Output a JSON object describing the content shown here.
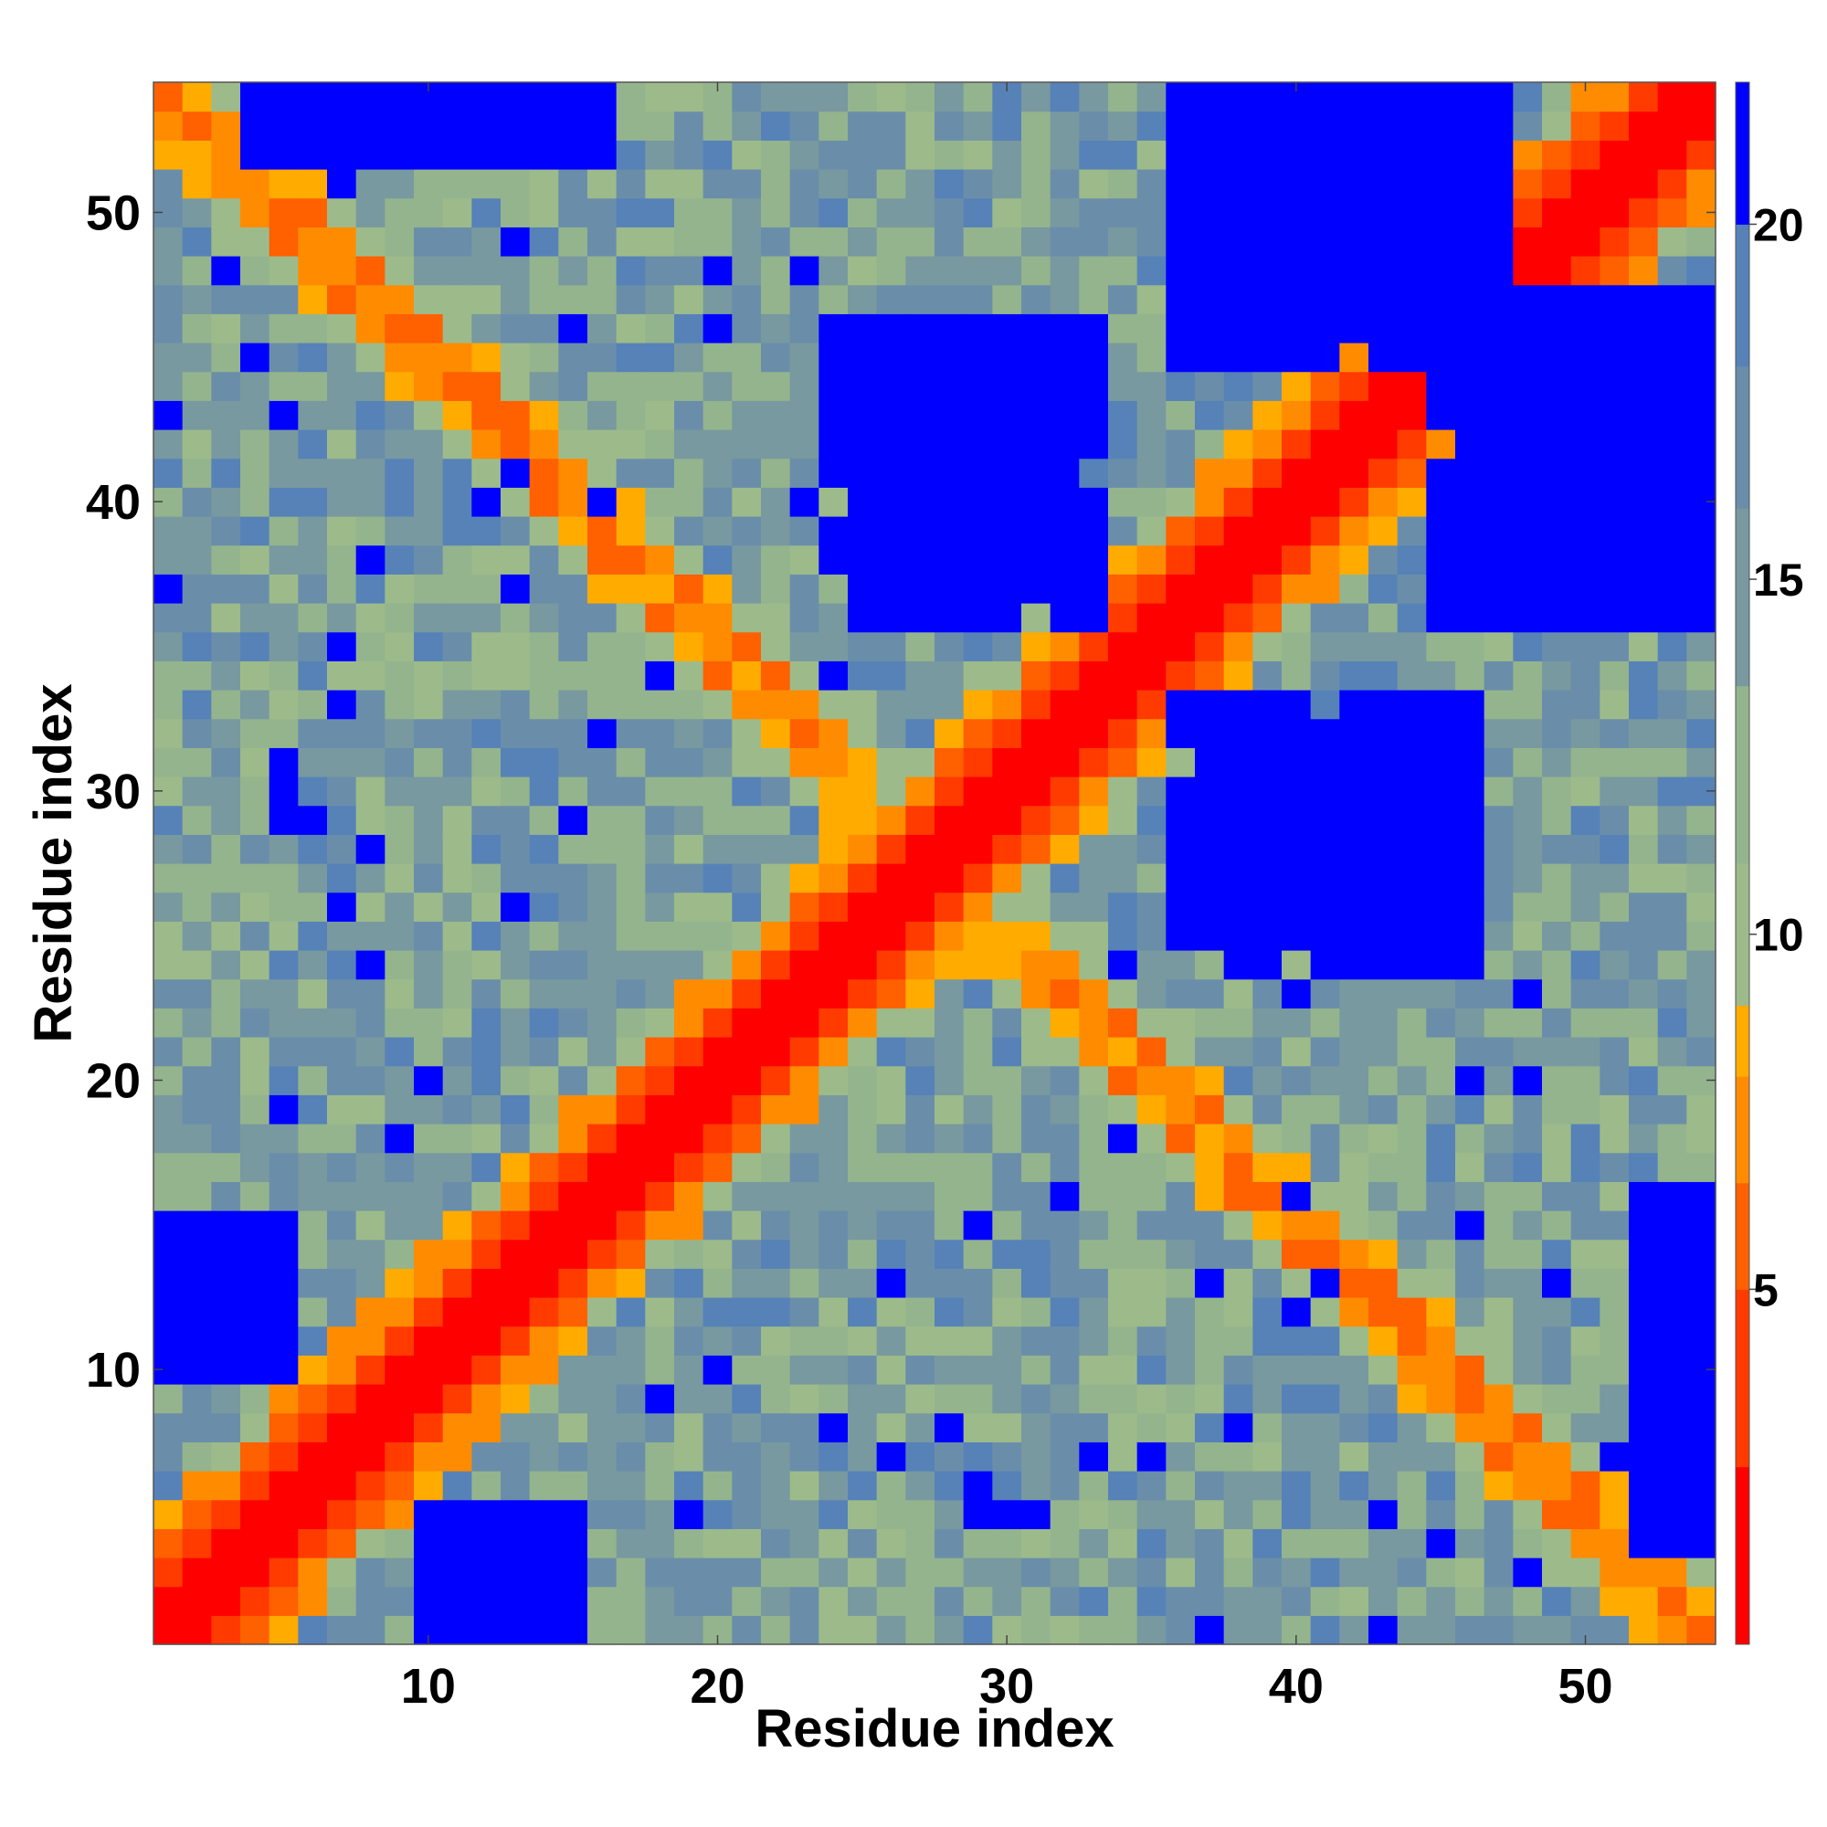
{
  "chart_data": {
    "type": "heatmap",
    "title": "",
    "xlabel": "Residue index",
    "ylabel": "Residue index",
    "n_residues": 54,
    "xlim": [
      0.5,
      54.5
    ],
    "ylim": [
      0.5,
      54.5
    ],
    "x_ticks": [
      10,
      20,
      30,
      40,
      50
    ],
    "y_ticks": [
      10,
      20,
      30,
      40,
      50
    ],
    "x_tick_labels": [
      "10",
      "20",
      "30",
      "40",
      "50"
    ],
    "y_tick_labels": [
      "10",
      "20",
      "30",
      "40",
      "50"
    ],
    "colorbar": {
      "range": [
        0,
        22
      ],
      "ticks": [
        5,
        10,
        15,
        20
      ],
      "tick_labels": [
        "5",
        "10",
        "15",
        "20"
      ],
      "bins": [
        {
          "from": 0,
          "to": 2.5,
          "color": "#ff0000"
        },
        {
          "from": 2.5,
          "to": 5,
          "color": "#ff3b00"
        },
        {
          "from": 5,
          "to": 6.5,
          "color": "#ff6000"
        },
        {
          "from": 6.5,
          "to": 8,
          "color": "#ff8c00"
        },
        {
          "from": 8,
          "to": 9,
          "color": "#ffab00"
        },
        {
          "from": 9,
          "to": 11,
          "color": "#9dbb8a"
        },
        {
          "from": 11,
          "to": 13.5,
          "color": "#94b48d"
        },
        {
          "from": 13.5,
          "to": 16,
          "color": "#78999f"
        },
        {
          "from": 16,
          "to": 18,
          "color": "#6a8eaa"
        },
        {
          "from": 18,
          "to": 20,
          "color": "#5682b8"
        },
        {
          "from": 20,
          "to": 22,
          "color": "#0000ff"
        }
      ]
    },
    "description_of_values": "Symmetric residue-residue distance map; diagonal near 0; an antiparallel contact band crosses from (1,54) to (54,1); distances above 20 saturate to blue in blocks centred near residues (27-33, 38-45) and (38-46, 25-32).",
    "matrix_generation": {
      "main_diagonal_band": "distance grows with |i-j|: 0 at |i-j|=0, ~3 at 1, ~5 at 2, ~7 at 3, ~9 at 4",
      "anti_diagonal_band": "contacts along i+j≈55 with distances 5-8",
      "far_blocks": [
        {
          "i": [
            25,
            33
          ],
          "j": [
            36,
            46
          ],
          "value": 22
        },
        {
          "i": [
            38,
            46
          ],
          "j": [
            24,
            32
          ],
          "value": 22
        },
        {
          "i": [
            10,
            15
          ],
          "j": [
            1,
            5
          ],
          "value": 22
        },
        {
          "i": [
            1,
            5
          ],
          "j": [
            10,
            15
          ],
          "value": 22
        },
        {
          "i": [
            52,
            54
          ],
          "j": [
            4,
            16
          ],
          "value": 22
        },
        {
          "i": [
            4,
            16
          ],
          "j": [
            52,
            54
          ],
          "value": 22
        },
        {
          "i": [
            45,
            54
          ],
          "j": [
            36,
            47
          ],
          "value": 22
        },
        {
          "i": [
            36,
            47
          ],
          "j": [
            45,
            54
          ],
          "value": 22
        }
      ]
    }
  }
}
